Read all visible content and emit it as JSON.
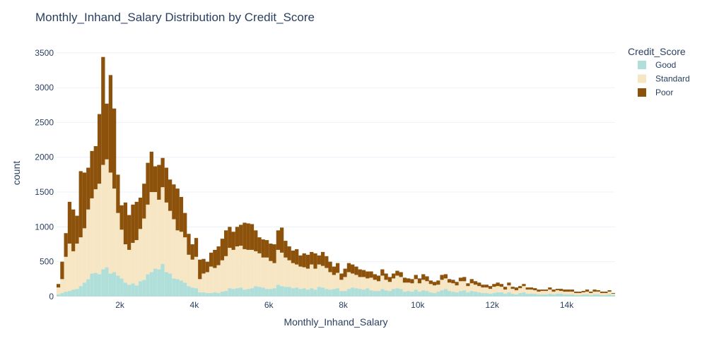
{
  "chart_data": {
    "type": "bar",
    "stacked": true,
    "title": "Monthly_Inhand_Salary Distribution by Credit_Score",
    "xlabel": "Monthly_Inhand_Salary",
    "ylabel": "count",
    "xlim": [
      300,
      15300
    ],
    "ylim": [
      0,
      3650
    ],
    "bin_width": 100,
    "x_ticks": [
      2000,
      4000,
      6000,
      8000,
      10000,
      12000,
      14000
    ],
    "x_tick_labels": [
      "2k",
      "4k",
      "6k",
      "8k",
      "10k",
      "12k",
      "14k"
    ],
    "y_ticks": [
      0,
      500,
      1000,
      1500,
      2000,
      2500,
      3000,
      3500
    ],
    "y_tick_labels": [
      "0",
      "500",
      "1000",
      "1500",
      "2000",
      "2500",
      "3000",
      "3500"
    ],
    "grid": true,
    "legend": {
      "title": "Credit_Score",
      "placement": "top-right"
    },
    "x_start": 300,
    "series": [
      {
        "name": "Good",
        "color": "#b0dfda",
        "values": [
          30,
          50,
          70,
          80,
          100,
          110,
          150,
          200,
          250,
          330,
          340,
          320,
          390,
          420,
          330,
          350,
          300,
          260,
          200,
          170,
          190,
          160,
          220,
          240,
          320,
          350,
          400,
          390,
          470,
          350,
          330,
          260,
          250,
          230,
          200,
          150,
          130,
          120,
          60,
          60,
          50,
          50,
          60,
          50,
          70,
          80,
          120,
          110,
          120,
          130,
          100,
          110,
          120,
          150,
          140,
          130,
          110,
          110,
          120,
          170,
          150,
          140,
          140,
          120,
          130,
          110,
          120,
          100,
          120,
          100,
          140,
          130,
          110,
          100,
          110,
          120,
          80,
          80,
          110,
          130,
          120,
          110,
          100,
          120,
          90,
          80,
          80,
          110,
          90,
          80,
          110,
          120,
          110,
          70,
          80,
          70,
          100,
          70,
          90,
          80,
          60,
          50,
          70,
          90,
          110,
          80,
          70,
          60,
          80,
          90,
          60,
          80,
          70,
          60,
          50,
          50,
          40,
          50,
          60,
          60,
          40,
          60,
          40,
          30,
          50,
          60,
          40,
          40,
          40,
          30,
          30,
          30,
          40,
          30,
          40,
          40,
          30,
          30,
          30,
          20,
          20,
          30,
          30,
          20,
          30,
          30,
          20,
          20,
          30,
          20
        ]
      },
      {
        "name": "Standard",
        "color": "#f6e6c4",
        "values": [
          100,
          200,
          500,
          680,
          550,
          650,
          700,
          780,
          1000,
          1080,
          1200,
          1300,
          1500,
          1550,
          1450,
          1200,
          900,
          700,
          550,
          500,
          580,
          650,
          750,
          880,
          1000,
          1150,
          1100,
          1000,
          1100,
          1000,
          900,
          850,
          700,
          700,
          650,
          450,
          400,
          450,
          190,
          270,
          300,
          380,
          350,
          400,
          450,
          500,
          580,
          560,
          600,
          600,
          580,
          560,
          550,
          500,
          480,
          430,
          450,
          400,
          360,
          500,
          480,
          420,
          380,
          360,
          330,
          320,
          300,
          300,
          340,
          300,
          320,
          310,
          300,
          250,
          200,
          220,
          160,
          200,
          240,
          200,
          190,
          170,
          180,
          140,
          180,
          160,
          140,
          190,
          150,
          130,
          150,
          180,
          170,
          130,
          120,
          120,
          150,
          120,
          150,
          140,
          120,
          110,
          100,
          150,
          150,
          120,
          120,
          100,
          140,
          130,
          90,
          110,
          100,
          90,
          80,
          80,
          70,
          90,
          90,
          80,
          60,
          100,
          70,
          60,
          70,
          90,
          60,
          60,
          50,
          40,
          50,
          50,
          60,
          40,
          50,
          40,
          40,
          40,
          40,
          30,
          30,
          30,
          40,
          30,
          40,
          40,
          30,
          30,
          40,
          20
        ]
      },
      {
        "name": "Poor",
        "color": "#8c510a",
        "values": [
          50,
          250,
          340,
          600,
          600,
          400,
          950,
          800,
          600,
          680,
          620,
          1000,
          1550,
          800,
          1400,
          1150,
          550,
          350,
          600,
          500,
          550,
          550,
          450,
          500,
          600,
          580,
          370,
          500,
          420,
          500,
          450,
          500,
          600,
          500,
          350,
          300,
          220,
          270,
          280,
          210,
          150,
          200,
          260,
          270,
          310,
          370,
          300,
          260,
          280,
          300,
          380,
          380,
          370,
          300,
          230,
          260,
          250,
          250,
          270,
          280,
          360,
          240,
          200,
          180,
          220,
          160,
          200,
          200,
          180,
          220,
          130,
          200,
          170,
          150,
          120,
          140,
          90,
          120,
          130,
          130,
          120,
          110,
          100,
          100,
          90,
          80,
          80,
          90,
          90,
          70,
          70,
          70,
          70,
          70,
          60,
          60,
          60,
          70,
          80,
          70,
          50,
          50,
          60,
          70,
          60,
          50,
          50,
          50,
          50,
          60,
          40,
          60,
          50,
          50,
          40,
          40,
          40,
          40,
          50,
          40,
          40,
          40,
          30,
          40,
          30,
          30,
          30,
          30,
          30,
          30,
          20,
          20,
          30,
          30,
          20,
          30,
          30,
          30,
          30,
          20,
          20,
          20,
          30,
          20,
          30,
          20,
          20,
          20,
          20,
          10
        ]
      }
    ]
  }
}
